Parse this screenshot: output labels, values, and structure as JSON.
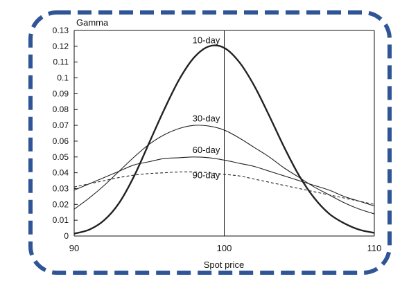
{
  "chart_data": {
    "type": "line",
    "title": "",
    "ylabel": "Gamma",
    "xlabel": "Spot price",
    "xlim": [
      90,
      110
    ],
    "ylim": [
      0,
      0.13
    ],
    "x_ticks": [
      "90",
      "100",
      "110"
    ],
    "y_ticks": [
      "0",
      "0.01",
      "0.02",
      "0.03",
      "0.04",
      "0.05",
      "0.06",
      "0.07",
      "0.08",
      "0.09",
      "0.1",
      "0.11",
      "0.12",
      "0.13"
    ],
    "vertical_line_x": 100,
    "grid": false,
    "series": [
      {
        "name": "10-day",
        "style": "bold",
        "x": [
          90,
          91,
          92,
          93,
          94,
          95,
          96,
          97,
          98,
          99,
          100,
          101,
          102,
          103,
          104,
          105,
          106,
          107,
          108,
          109,
          110
        ],
        "y": [
          0.0015,
          0.004,
          0.01,
          0.021,
          0.038,
          0.059,
          0.08,
          0.099,
          0.113,
          0.12,
          0.119,
          0.11,
          0.095,
          0.076,
          0.056,
          0.038,
          0.024,
          0.014,
          0.008,
          0.004,
          0.002
        ]
      },
      {
        "name": "30-day",
        "style": "solid",
        "x": [
          90,
          91,
          92,
          93,
          94,
          95,
          96,
          97,
          98,
          99,
          100,
          101,
          102,
          103,
          104,
          105,
          106,
          107,
          108,
          109,
          110
        ],
        "y": [
          0.017,
          0.024,
          0.032,
          0.041,
          0.05,
          0.058,
          0.064,
          0.068,
          0.07,
          0.0695,
          0.067,
          0.062,
          0.056,
          0.05,
          0.043,
          0.037,
          0.031,
          0.026,
          0.021,
          0.017,
          0.014
        ]
      },
      {
        "name": "60-day",
        "style": "solid",
        "x": [
          90,
          91,
          92,
          93,
          94,
          95,
          96,
          97,
          98,
          99,
          100,
          101,
          102,
          103,
          104,
          105,
          106,
          107,
          108,
          109,
          110
        ],
        "y": [
          0.029,
          0.033,
          0.037,
          0.041,
          0.045,
          0.047,
          0.049,
          0.0495,
          0.05,
          0.0495,
          0.048,
          0.046,
          0.044,
          0.041,
          0.038,
          0.035,
          0.032,
          0.029,
          0.025,
          0.022,
          0.019
        ]
      },
      {
        "name": "90-day",
        "style": "dashed",
        "x": [
          90,
          91,
          92,
          93,
          94,
          95,
          96,
          97,
          98,
          99,
          100,
          101,
          102,
          103,
          104,
          105,
          106,
          107,
          108,
          109,
          110
        ],
        "y": [
          0.031,
          0.033,
          0.035,
          0.037,
          0.0385,
          0.0395,
          0.04,
          0.0405,
          0.0405,
          0.04,
          0.039,
          0.038,
          0.036,
          0.034,
          0.032,
          0.03,
          0.028,
          0.026,
          0.024,
          0.022,
          0.02
        ]
      }
    ],
    "series_label_anchor": [
      {
        "name": "10-day",
        "x": 98.8,
        "y": 0.122
      },
      {
        "name": "30-day",
        "x": 98.8,
        "y": 0.0725
      },
      {
        "name": "60-day",
        "x": 98.8,
        "y": 0.0525
      },
      {
        "name": "90-day",
        "x": 98.8,
        "y": 0.0365
      }
    ]
  },
  "frame": {
    "border_color": "#2f5597"
  }
}
